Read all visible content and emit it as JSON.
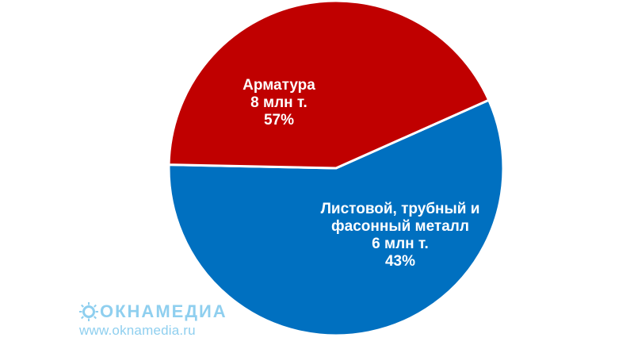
{
  "chart_data": {
    "type": "pie",
    "start_angle_deg": 66,
    "slices": [
      {
        "name": "Арматура",
        "value": 8,
        "unit_label": "8 млн т.",
        "percent": 57,
        "percent_label": "57%",
        "color": "#0070c0",
        "label_lines": [
          "Арматура",
          "8 млн т.",
          "57%"
        ]
      },
      {
        "name": "Листовой, трубный и фасонный металл",
        "value": 6,
        "unit_label": "6 млн т.",
        "percent": 43,
        "percent_label": "43%",
        "color": "#c00000",
        "label_lines": [
          "Листовой, трубный и",
          "фасонный металл",
          "6 млн т.",
          "43%"
        ]
      }
    ]
  },
  "watermark": {
    "logo": "ОКНАМЕДИА",
    "url": "www.oknamedia.ru",
    "icon": "sun-icon",
    "color": "#8fcfef"
  }
}
